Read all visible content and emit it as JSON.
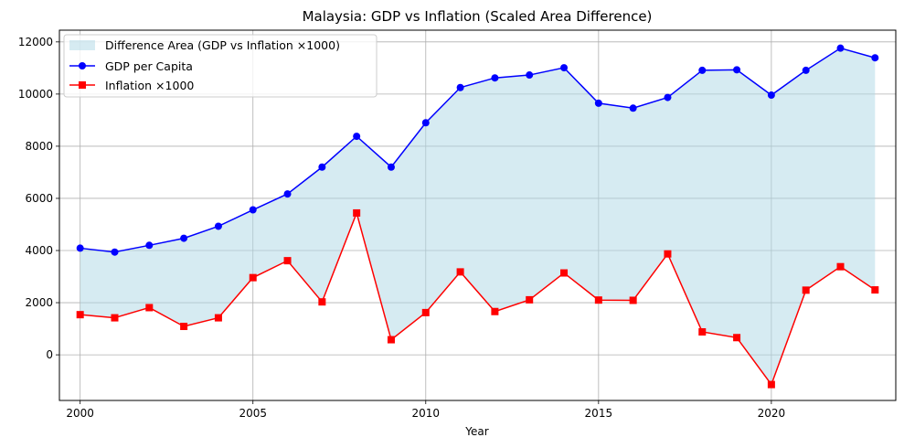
{
  "chart_data": {
    "type": "line",
    "title": "Malaysia: GDP vs Inflation (Scaled Area Difference)",
    "xlabel": "Year",
    "ylabel": "",
    "xlim": [
      1999.4,
      2023.6
    ],
    "ylim": [
      -1750,
      12450
    ],
    "xticks": [
      2000,
      2005,
      2010,
      2015,
      2020
    ],
    "yticks": [
      0,
      2000,
      4000,
      6000,
      8000,
      10000,
      12000
    ],
    "grid": true,
    "legend_position": "top-left",
    "x": [
      2000,
      2001,
      2002,
      2003,
      2004,
      2005,
      2006,
      2007,
      2008,
      2009,
      2010,
      2011,
      2012,
      2013,
      2014,
      2015,
      2016,
      2017,
      2018,
      2019,
      2020,
      2021,
      2022,
      2023
    ],
    "area": {
      "name": "Difference Area (GDP vs Inflation ×1000)",
      "color": "#add8e6"
    },
    "series": [
      {
        "name": "GDP per Capita",
        "color": "#0000ff",
        "marker": "circle",
        "values": [
          4090,
          3940,
          4200,
          4470,
          4930,
          5560,
          6170,
          7200,
          8380,
          7200,
          8900,
          10250,
          10620,
          10730,
          11010,
          9650,
          9460,
          9870,
          10910,
          10930,
          9960,
          10910,
          11760,
          11390
        ]
      },
      {
        "name": "Inflation ×1000",
        "color": "#ff0000",
        "marker": "square",
        "values": [
          1540,
          1420,
          1810,
          1090,
          1420,
          2960,
          3610,
          2030,
          5440,
          580,
          1620,
          3180,
          1660,
          2110,
          3140,
          2100,
          2090,
          3870,
          880,
          660,
          -1140,
          2480,
          3380,
          2490
        ]
      }
    ]
  }
}
